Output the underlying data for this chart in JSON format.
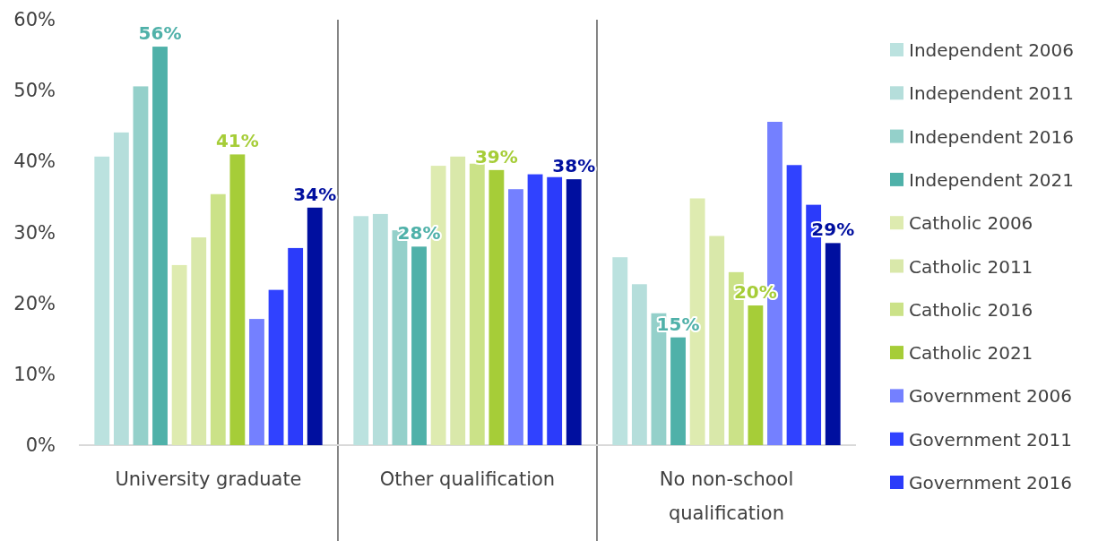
{
  "chart_data": {
    "type": "bar",
    "categories": [
      "University graduate",
      "Other qualification",
      "No non-school qualification"
    ],
    "series": [
      {
        "name": "Independent 2006",
        "color": "#bbe2df",
        "values": [
          40.7,
          32.3,
          26.5
        ]
      },
      {
        "name": "Independent 2011",
        "color": "#b5dedb",
        "values": [
          44.1,
          32.6,
          22.7
        ]
      },
      {
        "name": "Independent 2016",
        "color": "#94d0ca",
        "values": [
          50.6,
          30.3,
          18.6
        ]
      },
      {
        "name": "Independent 2021",
        "color": "#4fb1a9",
        "values": [
          56.2,
          28.0,
          15.2
        ],
        "value_labels": [
          "56%",
          "28%",
          "15%"
        ]
      },
      {
        "name": "Catholic 2006",
        "color": "#deebb0",
        "values": [
          25.4,
          39.4,
          34.8
        ]
      },
      {
        "name": "Catholic 2011",
        "color": "#d9e8aa",
        "values": [
          29.3,
          40.7,
          29.5
        ]
      },
      {
        "name": "Catholic 2016",
        "color": "#cbe288",
        "values": [
          35.4,
          39.7,
          24.4
        ]
      },
      {
        "name": "Catholic 2021",
        "color": "#a6cd38",
        "values": [
          41.0,
          38.8,
          19.7
        ],
        "value_labels": [
          "41%",
          "39%",
          "20%"
        ]
      },
      {
        "name": "Government 2006",
        "color": "#7480ff",
        "values": [
          17.8,
          36.1,
          45.6
        ]
      },
      {
        "name": "Government 2011",
        "color": "#3042ff",
        "values": [
          21.9,
          38.2,
          39.5
        ]
      },
      {
        "name": "Government 2016",
        "color": "#2b3bfa",
        "values": [
          27.8,
          37.8,
          33.9
        ]
      },
      {
        "color": "#000f9f",
        "values": [
          33.5,
          37.5,
          28.5
        ],
        "value_labels": [
          "34%",
          "38%",
          "29%"
        ]
      }
    ],
    "ylim": [
      0,
      60
    ],
    "yticks": [
      {
        "value": 0,
        "label": "0%"
      },
      {
        "value": 10,
        "label": "10%"
      },
      {
        "value": 20,
        "label": "20%"
      },
      {
        "value": 30,
        "label": "30%"
      },
      {
        "value": 40,
        "label": "40%"
      },
      {
        "value": 50,
        "label": "50%"
      },
      {
        "value": 60,
        "label": "60%"
      }
    ],
    "grid": false,
    "legend": "right"
  }
}
